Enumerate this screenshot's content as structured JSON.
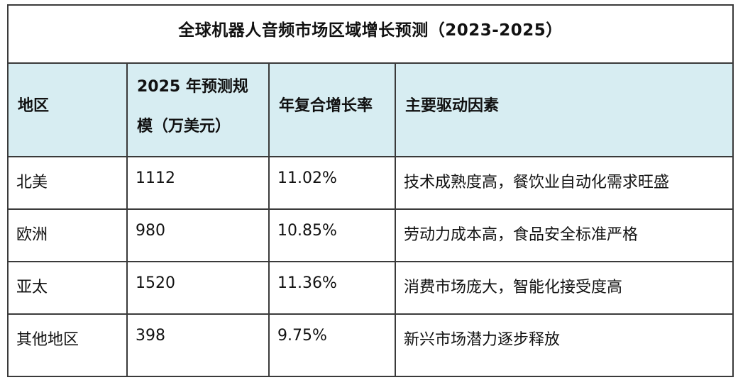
{
  "table": {
    "title": "全球机器人音频市场区域增长预测（2023-2025）",
    "headers": [
      "地区",
      "2025 年预测规模（万美元）",
      "年复合增长率",
      "主要驱动因素"
    ],
    "rows": [
      [
        "北美",
        "1112",
        "11.02%",
        "技术成熟度高，餐饮业自动化需求旺盛"
      ],
      [
        "欧洲",
        "980",
        "10.85%",
        "劳动力成本高，食品安全标准严格"
      ],
      [
        "亚太",
        "1520",
        "11.36%",
        "消费市场庞大，智能化接受度高"
      ],
      [
        "其他地区",
        "398",
        "9.75%",
        "新兴市场潜力逐步释放"
      ]
    ]
  }
}
